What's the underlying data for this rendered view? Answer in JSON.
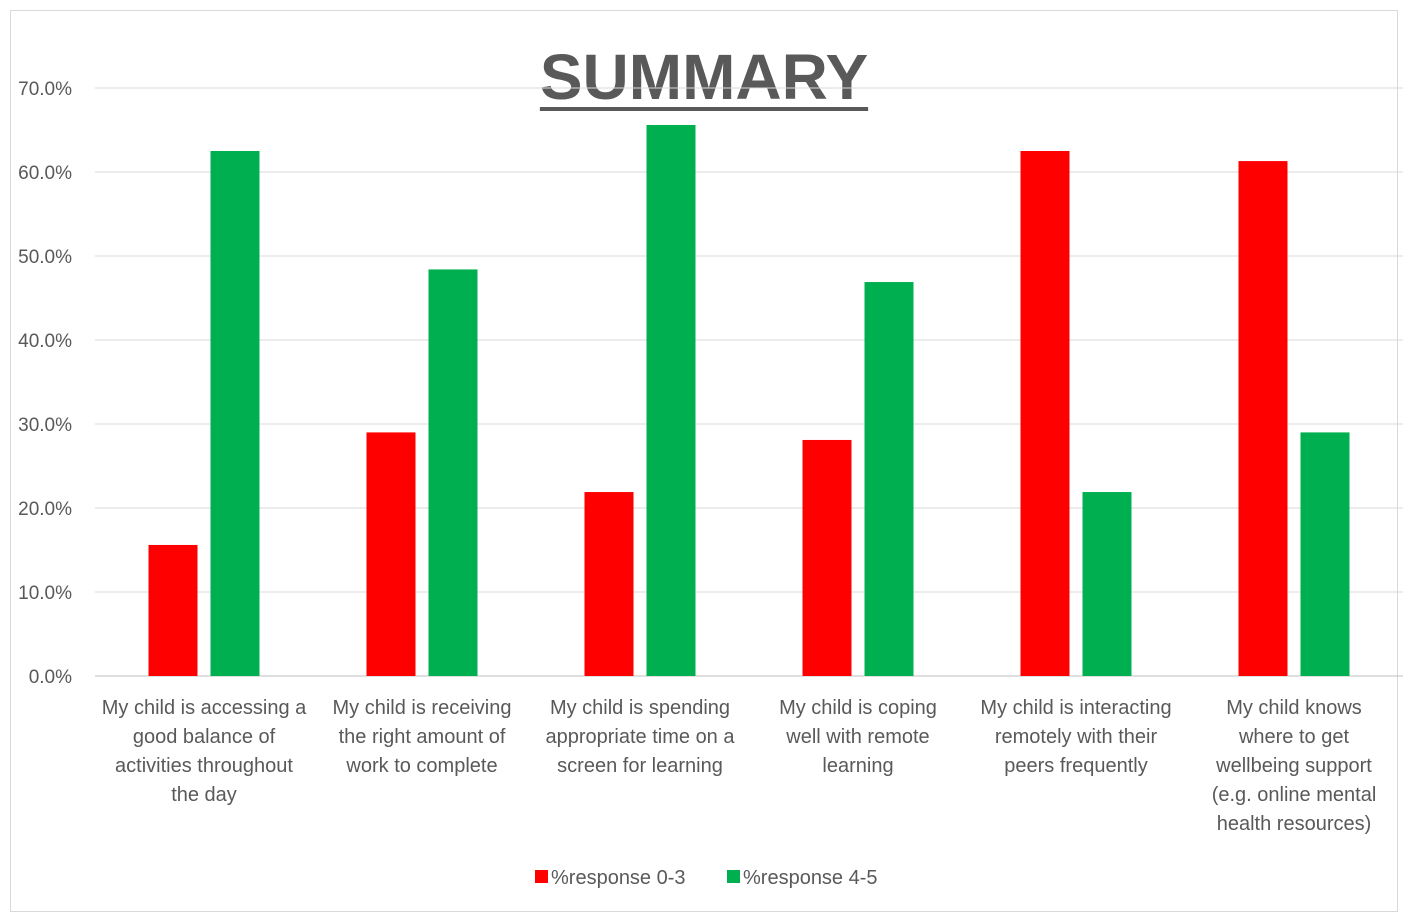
{
  "chart_data": {
    "type": "bar",
    "title": "SUMMARY",
    "categories": [
      "My child is accessing a good balance of activities throughout the day",
      "My child is receiving the right amount of work to complete",
      "My child is spending appropriate time on a screen for learning",
      "My child is coping well with remote learning",
      "My child is interacting remotely with their peers frequently",
      "My child knows where to get wellbeing support (e.g. online mental health resources)"
    ],
    "category_lines": [
      [
        "My child is accessing a",
        "good balance of",
        "activities throughout",
        "the day"
      ],
      [
        "My child is receiving",
        "the right amount of",
        "work to complete"
      ],
      [
        "My child is spending",
        "appropriate time on a",
        "screen for learning"
      ],
      [
        "My child is coping",
        "well with remote",
        "learning"
      ],
      [
        "My child is interacting",
        "remotely with their",
        "peers frequently"
      ],
      [
        "My child knows",
        "where to get",
        "wellbeing support",
        "(e.g. online mental",
        "health resources)"
      ]
    ],
    "series": [
      {
        "name": "%response 0-3",
        "color": "#ff0000",
        "values": [
          15.6,
          29.0,
          21.9,
          28.1,
          62.5,
          61.3
        ]
      },
      {
        "name": "%response 4-5",
        "color": "#00b050",
        "values": [
          62.5,
          48.4,
          65.6,
          46.9,
          21.9,
          29.0
        ]
      }
    ],
    "ylim": [
      0,
      70
    ],
    "yticks": [
      "0.0%",
      "10.0%",
      "20.0%",
      "30.0%",
      "40.0%",
      "50.0%",
      "60.0%",
      "70.0%"
    ],
    "grid": true,
    "legend_position": "bottom"
  }
}
